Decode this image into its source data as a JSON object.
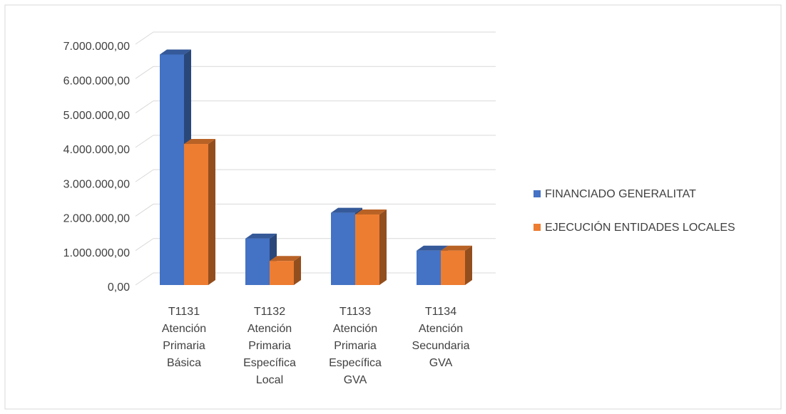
{
  "chart_data": {
    "type": "bar3d",
    "categories": [
      "T1131 Atención Primaria Básica",
      "T1132 Atención Primaria Específica Local",
      "T1133 Atención Primaria Específica GVA",
      "T1134 Atención Secundaria GVA"
    ],
    "series": [
      {
        "name": "FINANCIADO GENERALITAT",
        "color": "#4472c4",
        "values": [
          6700000,
          1350000,
          2100000,
          1000000
        ]
      },
      {
        "name": "EJECUCIÓN ENTIDADES LOCALES",
        "color": "#ed7d31",
        "values": [
          4100000,
          700000,
          2050000,
          1000000
        ]
      }
    ],
    "ylim": [
      0,
      7000000
    ],
    "yticks": [
      {
        "value": 0,
        "label": "0,00"
      },
      {
        "value": 1000000,
        "label": "1.000.000,00"
      },
      {
        "value": 2000000,
        "label": "2.000.000,00"
      },
      {
        "value": 3000000,
        "label": "3.000.000,00"
      },
      {
        "value": 4000000,
        "label": "4.000.000,00"
      },
      {
        "value": 5000000,
        "label": "5.000.000,00"
      },
      {
        "value": 6000000,
        "label": "6.000.000,00"
      },
      {
        "value": 7000000,
        "label": "7.000.000,00"
      }
    ],
    "grid": true,
    "legend": "right"
  }
}
